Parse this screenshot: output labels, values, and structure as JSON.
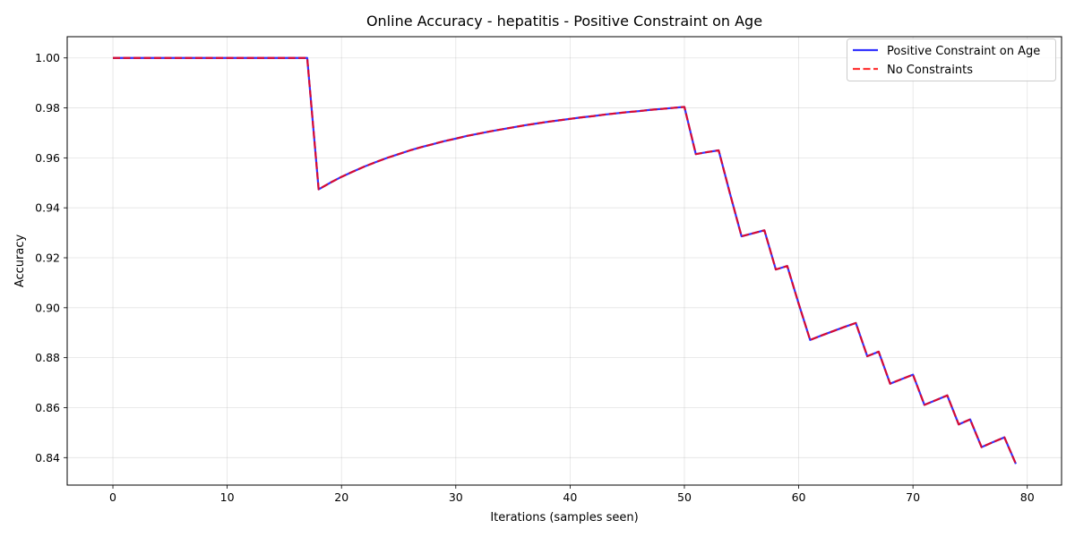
{
  "chart_data": {
    "type": "line",
    "title": "Online Accuracy - hepatitis - Positive Constraint on Age",
    "xlabel": "Iterations (samples seen)",
    "ylabel": "Accuracy",
    "xlim": [
      -4,
      83
    ],
    "ylim": [
      0.829,
      1.0085
    ],
    "xticks": [
      0,
      10,
      20,
      30,
      40,
      50,
      60,
      70,
      80
    ],
    "yticks": [
      0.84,
      0.86,
      0.88,
      0.9,
      0.92,
      0.94,
      0.96,
      0.98,
      1.0
    ],
    "ytick_labels": [
      "0.84",
      "0.86",
      "0.88",
      "0.90",
      "0.92",
      "0.94",
      "0.96",
      "0.98",
      "1.00"
    ],
    "grid": true,
    "legend_position": "top-right",
    "x": [
      0,
      1,
      2,
      3,
      4,
      5,
      6,
      7,
      8,
      9,
      10,
      11,
      12,
      13,
      14,
      15,
      16,
      17,
      18,
      19,
      20,
      21,
      22,
      23,
      24,
      25,
      26,
      27,
      28,
      29,
      30,
      31,
      32,
      33,
      34,
      35,
      36,
      37,
      38,
      39,
      40,
      41,
      42,
      43,
      44,
      45,
      46,
      47,
      48,
      49,
      50,
      51,
      52,
      53,
      54,
      55,
      56,
      57,
      58,
      59,
      60,
      61,
      62,
      63,
      64,
      65,
      66,
      67,
      68,
      69,
      70,
      71,
      72,
      73,
      74,
      75,
      76,
      77,
      78,
      79
    ],
    "series": [
      {
        "name": "Positive Constraint on Age",
        "color": "#0000ff",
        "style": "solid",
        "values": [
          1.0,
          1.0,
          1.0,
          1.0,
          1.0,
          1.0,
          1.0,
          1.0,
          1.0,
          1.0,
          1.0,
          1.0,
          1.0,
          1.0,
          1.0,
          1.0,
          1.0,
          1.0,
          0.9474,
          0.95,
          0.9524,
          0.9545,
          0.9565,
          0.9583,
          0.96,
          0.9615,
          0.963,
          0.9643,
          0.9655,
          0.9667,
          0.9677,
          0.9688,
          0.9697,
          0.9706,
          0.9714,
          0.9722,
          0.973,
          0.9737,
          0.9744,
          0.975,
          0.9756,
          0.9762,
          0.9767,
          0.9773,
          0.9778,
          0.9783,
          0.9787,
          0.9792,
          0.9796,
          0.98,
          0.9804,
          0.9615,
          0.9623,
          0.963,
          0.9455,
          0.9286,
          0.9298,
          0.931,
          0.9153,
          0.9167,
          0.9016,
          0.8871,
          0.8889,
          0.8906,
          0.8923,
          0.8939,
          0.8806,
          0.8824,
          0.8696,
          0.8714,
          0.8732,
          0.8611,
          0.863,
          0.8649,
          0.8533,
          0.8553,
          0.8442,
          0.8462,
          0.8481,
          0.8375
        ]
      },
      {
        "name": "No Constraints",
        "color": "#ff0000",
        "style": "dashed",
        "values": [
          1.0,
          1.0,
          1.0,
          1.0,
          1.0,
          1.0,
          1.0,
          1.0,
          1.0,
          1.0,
          1.0,
          1.0,
          1.0,
          1.0,
          1.0,
          1.0,
          1.0,
          1.0,
          0.9474,
          0.95,
          0.9524,
          0.9545,
          0.9565,
          0.9583,
          0.96,
          0.9615,
          0.963,
          0.9643,
          0.9655,
          0.9667,
          0.9677,
          0.9688,
          0.9697,
          0.9706,
          0.9714,
          0.9722,
          0.973,
          0.9737,
          0.9744,
          0.975,
          0.9756,
          0.9762,
          0.9767,
          0.9773,
          0.9778,
          0.9783,
          0.9787,
          0.9792,
          0.9796,
          0.98,
          0.9804,
          0.9615,
          0.9623,
          0.963,
          0.9455,
          0.9286,
          0.9298,
          0.931,
          0.9153,
          0.9167,
          0.9016,
          0.8871,
          0.8889,
          0.8906,
          0.8923,
          0.8939,
          0.8806,
          0.8824,
          0.8696,
          0.8714,
          0.8732,
          0.8611,
          0.863,
          0.8649,
          0.8533,
          0.8553,
          0.8442,
          0.8462,
          0.8481,
          0.8375
        ]
      }
    ]
  }
}
